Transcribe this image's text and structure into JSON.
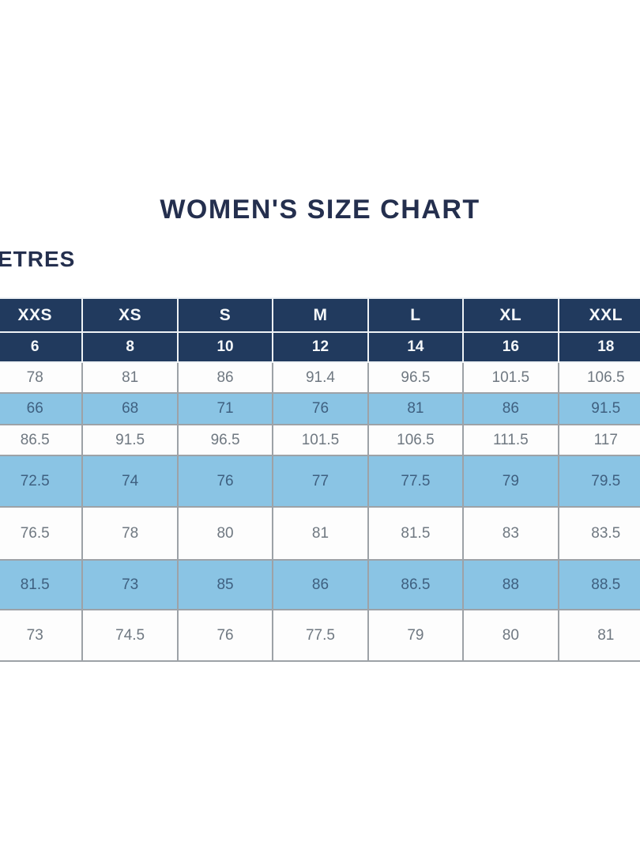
{
  "title": "WOMEN'S SIZE CHART",
  "unit_label": "ETRES",
  "colors": {
    "title_text": "#242f4e",
    "header_bg": "#213a5e",
    "header_text": "#f5f8fa",
    "header_border": "#eef2f5",
    "table_top_border": "#182c49",
    "row_bg": "#fdfdfd",
    "row_text": "#6f7881",
    "row_alt_bg": "#8ac4e4",
    "row_alt_text": "#3f6080",
    "grid_border": "#9da2a7"
  },
  "chart_data": {
    "type": "table",
    "title": "WOMEN'S SIZE CHART",
    "unit_label_visible": "ETRES",
    "columns": [
      "XXS",
      "XS",
      "S",
      "M",
      "L",
      "XL",
      "XXL"
    ],
    "size_numbers": [
      "6",
      "8",
      "10",
      "12",
      "14",
      "16",
      "18"
    ],
    "rows": [
      [
        "78",
        "81",
        "86",
        "91.4",
        "96.5",
        "101.5",
        "106.5"
      ],
      [
        "66",
        "68",
        "71",
        "76",
        "81",
        "86",
        "91.5"
      ],
      [
        "86.5",
        "91.5",
        "96.5",
        "101.5",
        "106.5",
        "111.5",
        "117"
      ],
      [
        "72.5",
        "74",
        "76",
        "77",
        "77.5",
        "79",
        "79.5"
      ],
      [
        "76.5",
        "78",
        "80",
        "81",
        "81.5",
        "83",
        "83.5"
      ],
      [
        "81.5",
        "73",
        "85",
        "86",
        "86.5",
        "88",
        "88.5"
      ],
      [
        "73",
        "74.5",
        "76",
        "77.5",
        "79",
        "80",
        "81"
      ]
    ],
    "row_styles": [
      "white",
      "blue",
      "white",
      "blue",
      "white",
      "blue",
      "white"
    ],
    "layout_hints": {
      "header_rows": 2,
      "table_cropped_left": true,
      "table_cropped_right": true,
      "alternating_row_highlight": true
    }
  }
}
